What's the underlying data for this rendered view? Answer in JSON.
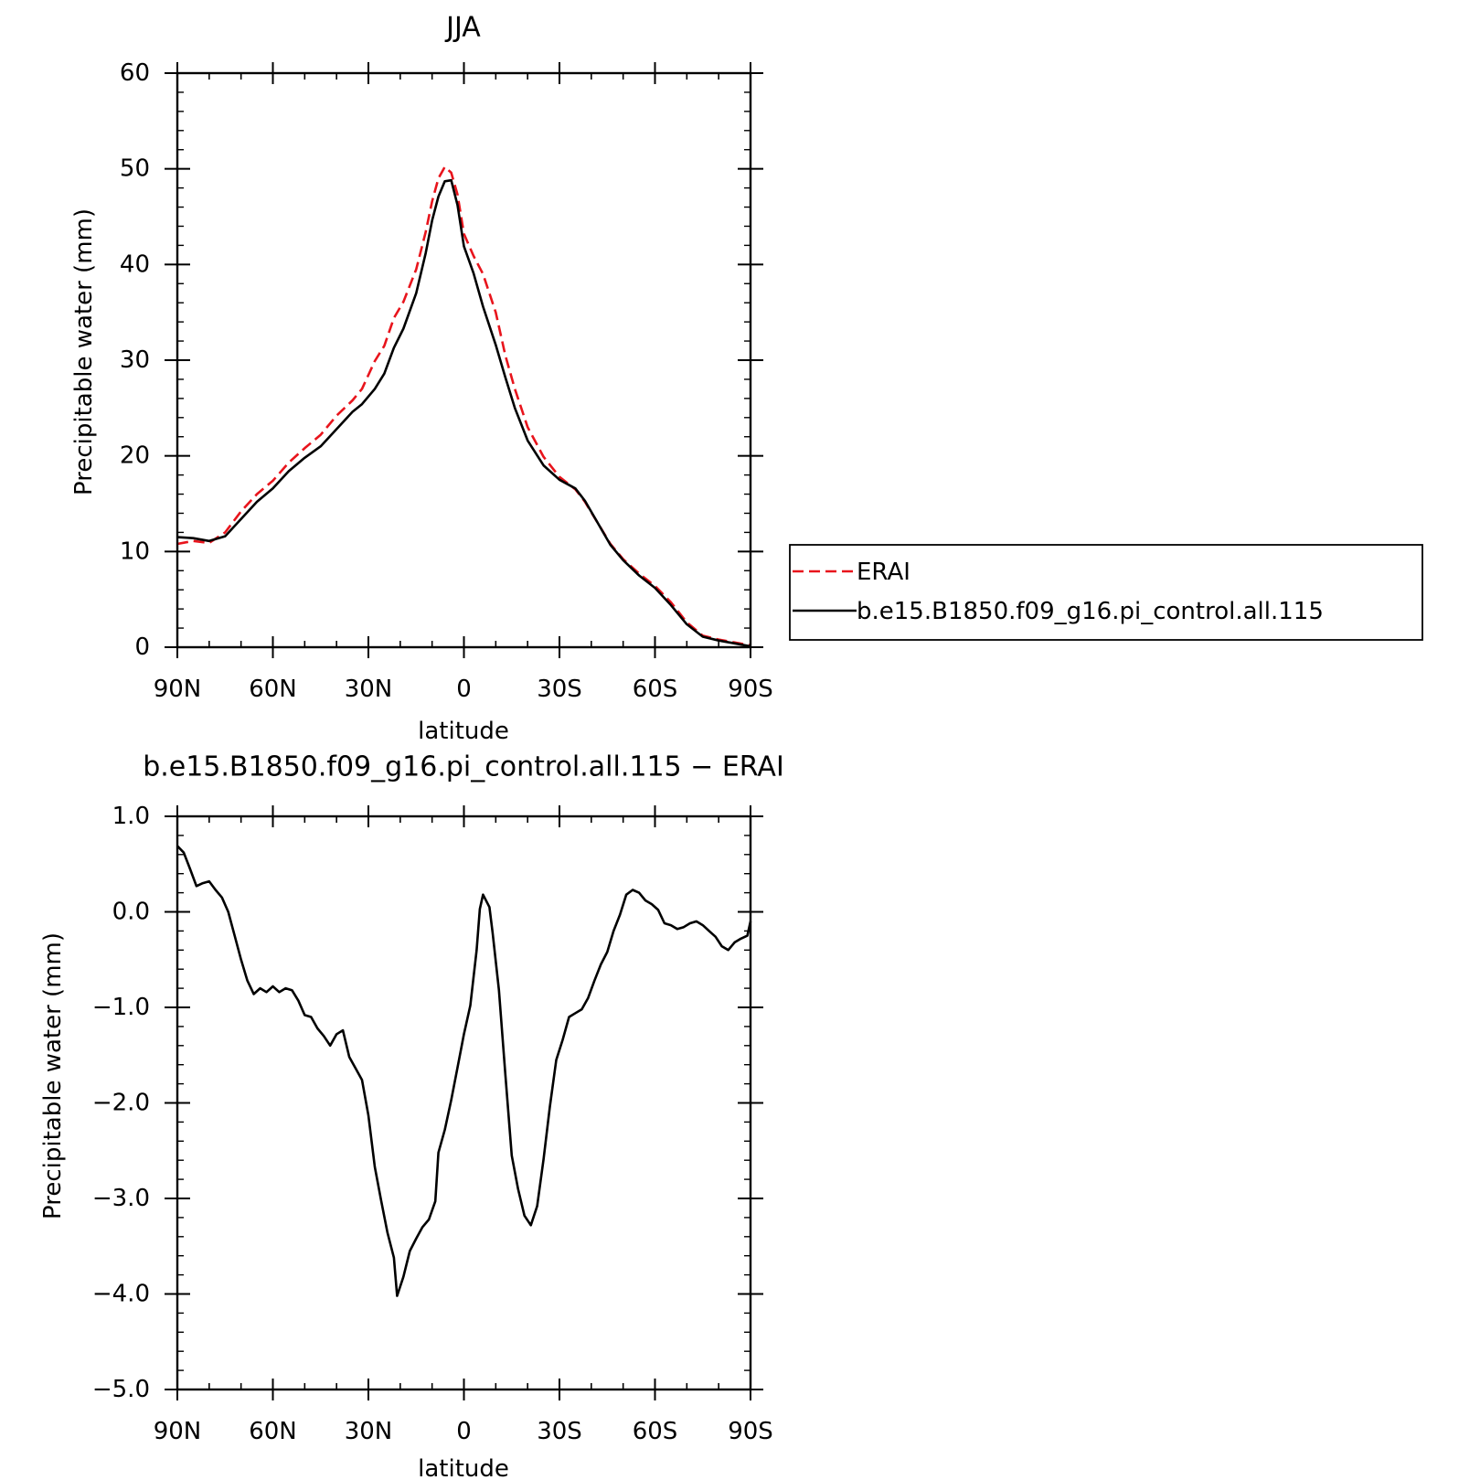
{
  "chart_data": [
    {
      "type": "line",
      "title": "JJA",
      "xlabel": "latitude",
      "ylabel": "Precipitable water (mm)",
      "xlim": [
        90,
        -90
      ],
      "ylim": [
        0,
        60
      ],
      "xticks": [
        90,
        60,
        30,
        0,
        -30,
        -60,
        -90
      ],
      "xtick_labels": [
        "90N",
        "60N",
        "30N",
        "0",
        "30S",
        "60S",
        "90S"
      ],
      "yticks": [
        0,
        10,
        20,
        30,
        40,
        50,
        60
      ],
      "ytick_labels": [
        "0",
        "10",
        "20",
        "30",
        "40",
        "50",
        "60"
      ],
      "grid": false,
      "legend_position": "right-outside",
      "series": [
        {
          "name": "ERAI",
          "color": "#e8141c",
          "dash": "dashed",
          "points": [
            [
              90,
              10.8
            ],
            [
              85,
              11.1
            ],
            [
              80,
              10.9
            ],
            [
              75,
              12.0
            ],
            [
              70,
              14.2
            ],
            [
              65,
              16.0
            ],
            [
              60,
              17.4
            ],
            [
              55,
              19.3
            ],
            [
              50,
              20.8
            ],
            [
              45,
              22.2
            ],
            [
              40,
              24.2
            ],
            [
              35,
              25.8
            ],
            [
              32,
              27.0
            ],
            [
              28,
              29.9
            ],
            [
              25,
              31.5
            ],
            [
              22,
              34.4
            ],
            [
              19,
              36.1
            ],
            [
              15,
              39.5
            ],
            [
              12,
              43.4
            ],
            [
              10,
              46.6
            ],
            [
              8,
              49.0
            ],
            [
              6,
              50.2
            ],
            [
              4,
              49.6
            ],
            [
              2,
              47.3
            ],
            [
              0,
              43.2
            ],
            [
              -3,
              40.9
            ],
            [
              -6,
              39.0
            ],
            [
              -10,
              35.0
            ],
            [
              -13,
              30.5
            ],
            [
              -16,
              27.0
            ],
            [
              -20,
              23.0
            ],
            [
              -25,
              19.9
            ],
            [
              -30,
              17.8
            ],
            [
              -35,
              16.5
            ],
            [
              -38,
              15.2
            ],
            [
              -42,
              13.0
            ],
            [
              -46,
              10.8
            ],
            [
              -50,
              9.2
            ],
            [
              -55,
              7.7
            ],
            [
              -60,
              6.4
            ],
            [
              -65,
              4.7
            ],
            [
              -70,
              2.6
            ],
            [
              -75,
              1.2
            ],
            [
              -80,
              0.8
            ],
            [
              -85,
              0.5
            ],
            [
              -90,
              0.2
            ]
          ]
        },
        {
          "name": "b.e15.B1850.f09_g16.pi_control.all.115",
          "color": "#000000",
          "dash": "solid",
          "points": [
            [
              90,
              11.5
            ],
            [
              85,
              11.4
            ],
            [
              80,
              11.1
            ],
            [
              75,
              11.6
            ],
            [
              70,
              13.4
            ],
            [
              65,
              15.2
            ],
            [
              60,
              16.6
            ],
            [
              55,
              18.4
            ],
            [
              50,
              19.8
            ],
            [
              45,
              21.0
            ],
            [
              40,
              22.8
            ],
            [
              35,
              24.6
            ],
            [
              32,
              25.4
            ],
            [
              28,
              27.0
            ],
            [
              25,
              28.6
            ],
            [
              22,
              31.3
            ],
            [
              19,
              33.3
            ],
            [
              15,
              37.0
            ],
            [
              12,
              41.2
            ],
            [
              10,
              44.6
            ],
            [
              8,
              47.1
            ],
            [
              6,
              48.7
            ],
            [
              4,
              48.8
            ],
            [
              2,
              46.2
            ],
            [
              0,
              41.9
            ],
            [
              -3,
              39.1
            ],
            [
              -6,
              35.6
            ],
            [
              -10,
              31.6
            ],
            [
              -13,
              28.2
            ],
            [
              -16,
              25.0
            ],
            [
              -20,
              21.6
            ],
            [
              -25,
              19.0
            ],
            [
              -30,
              17.5
            ],
            [
              -35,
              16.6
            ],
            [
              -38,
              15.3
            ],
            [
              -42,
              13.0
            ],
            [
              -46,
              10.7
            ],
            [
              -50,
              9.1
            ],
            [
              -55,
              7.5
            ],
            [
              -60,
              6.2
            ],
            [
              -65,
              4.4
            ],
            [
              -70,
              2.4
            ],
            [
              -75,
              1.1
            ],
            [
              -80,
              0.7
            ],
            [
              -85,
              0.4
            ],
            [
              -90,
              0.1
            ]
          ]
        }
      ]
    },
    {
      "type": "line",
      "title": "b.e15.B1850.f09_g16.pi_control.all.115 − ERAI",
      "xlabel": "latitude",
      "ylabel": "Precipitable water (mm)",
      "xlim": [
        90,
        -90
      ],
      "ylim": [
        -5,
        1
      ],
      "xticks": [
        90,
        60,
        30,
        0,
        -30,
        -60,
        -90
      ],
      "xtick_labels": [
        "90N",
        "60N",
        "30N",
        "0",
        "30S",
        "60S",
        "90S"
      ],
      "yticks": [
        1,
        0,
        -1,
        -2,
        -3,
        -4,
        -5
      ],
      "ytick_labels": [
        "1.0",
        "0.0",
        "−1.0",
        "−2.0",
        "−3.0",
        "−4.0",
        "−5.0"
      ],
      "grid": false,
      "series": [
        {
          "color": "#000000",
          "dash": "solid",
          "points": [
            [
              90,
              0.69
            ],
            [
              88,
              0.62
            ],
            [
              86,
              0.45
            ],
            [
              84,
              0.27
            ],
            [
              82,
              0.3
            ],
            [
              80,
              0.32
            ],
            [
              78,
              0.23
            ],
            [
              76,
              0.15
            ],
            [
              74,
              0.0
            ],
            [
              72,
              -0.25
            ],
            [
              70,
              -0.5
            ],
            [
              68,
              -0.72
            ],
            [
              66,
              -0.86
            ],
            [
              64,
              -0.8
            ],
            [
              62,
              -0.84
            ],
            [
              60,
              -0.78
            ],
            [
              58,
              -0.84
            ],
            [
              56,
              -0.8
            ],
            [
              54,
              -0.82
            ],
            [
              52,
              -0.93
            ],
            [
              50,
              -1.08
            ],
            [
              48,
              -1.1
            ],
            [
              46,
              -1.22
            ],
            [
              44,
              -1.3
            ],
            [
              42,
              -1.4
            ],
            [
              40,
              -1.28
            ],
            [
              38,
              -1.24
            ],
            [
              36,
              -1.52
            ],
            [
              34,
              -1.64
            ],
            [
              32,
              -1.76
            ],
            [
              30,
              -2.13
            ],
            [
              28,
              -2.67
            ],
            [
              26,
              -3.02
            ],
            [
              24,
              -3.36
            ],
            [
              22,
              -3.62
            ],
            [
              21,
              -4.02
            ],
            [
              19,
              -3.82
            ],
            [
              17,
              -3.55
            ],
            [
              15,
              -3.42
            ],
            [
              13,
              -3.3
            ],
            [
              11,
              -3.22
            ],
            [
              9,
              -3.03
            ],
            [
              8,
              -2.52
            ],
            [
              6,
              -2.28
            ],
            [
              4,
              -1.97
            ],
            [
              2,
              -1.63
            ],
            [
              0,
              -1.28
            ],
            [
              -2,
              -0.98
            ],
            [
              -4,
              -0.4
            ],
            [
              -5,
              0.03
            ],
            [
              -6,
              0.18
            ],
            [
              -8,
              0.05
            ],
            [
              -9,
              -0.22
            ],
            [
              -11,
              -0.82
            ],
            [
              -13,
              -1.7
            ],
            [
              -15,
              -2.55
            ],
            [
              -17,
              -2.9
            ],
            [
              -19,
              -3.18
            ],
            [
              -21,
              -3.28
            ],
            [
              -23,
              -3.08
            ],
            [
              -25,
              -2.59
            ],
            [
              -27,
              -2.04
            ],
            [
              -29,
              -1.55
            ],
            [
              -31,
              -1.34
            ],
            [
              -33,
              -1.1
            ],
            [
              -35,
              -1.06
            ],
            [
              -37,
              -1.02
            ],
            [
              -39,
              -0.9
            ],
            [
              -41,
              -0.72
            ],
            [
              -43,
              -0.55
            ],
            [
              -45,
              -0.42
            ],
            [
              -47,
              -0.2
            ],
            [
              -49,
              -0.03
            ],
            [
              -51,
              0.18
            ],
            [
              -53,
              0.23
            ],
            [
              -55,
              0.2
            ],
            [
              -57,
              0.12
            ],
            [
              -59,
              0.08
            ],
            [
              -61,
              0.02
            ],
            [
              -63,
              -0.12
            ],
            [
              -65,
              -0.14
            ],
            [
              -67,
              -0.18
            ],
            [
              -69,
              -0.16
            ],
            [
              -71,
              -0.12
            ],
            [
              -73,
              -0.1
            ],
            [
              -75,
              -0.14
            ],
            [
              -77,
              -0.2
            ],
            [
              -79,
              -0.26
            ],
            [
              -81,
              -0.36
            ],
            [
              -83,
              -0.4
            ],
            [
              -85,
              -0.32
            ],
            [
              -87,
              -0.28
            ],
            [
              -89,
              -0.25
            ],
            [
              -90,
              -0.1
            ]
          ]
        }
      ]
    }
  ]
}
